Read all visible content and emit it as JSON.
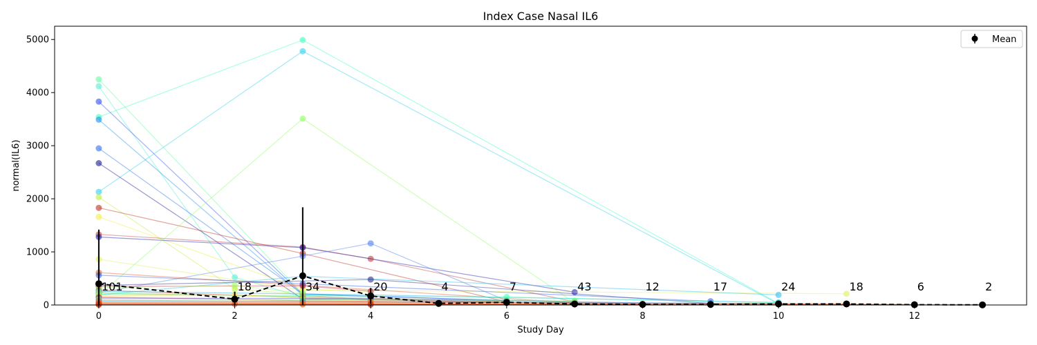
{
  "chart_data": {
    "type": "line",
    "title": "Index Case Nasal IL6",
    "xlabel": "Study Day",
    "ylabel": "normal(IL6)",
    "xlim": [
      -0.65,
      13.65
    ],
    "ylim": [
      0,
      5250
    ],
    "x_ticks": [
      0,
      2,
      4,
      6,
      8,
      10,
      12
    ],
    "y_ticks": [
      0,
      1000,
      2000,
      3000,
      4000,
      5000
    ],
    "grid": false,
    "legend": {
      "placement": "top-right",
      "entries": [
        "Mean"
      ]
    },
    "mean_series": {
      "name": "Mean",
      "color": "#000000",
      "points": [
        {
          "x": 0,
          "y": 400,
          "err": 1020
        },
        {
          "x": 2,
          "y": 110,
          "err": 140
        },
        {
          "x": 3,
          "y": 550,
          "err": 1290
        },
        {
          "x": 4,
          "y": 170,
          "err": 150
        },
        {
          "x": 5,
          "y": 30,
          "err": 0
        },
        {
          "x": 6,
          "y": 50,
          "err": 30
        },
        {
          "x": 7,
          "y": 20,
          "err": 20
        },
        {
          "x": 8,
          "y": 10,
          "err": 5
        },
        {
          "x": 9,
          "y": 10,
          "err": 10
        },
        {
          "x": 10,
          "y": 20,
          "err": 20
        },
        {
          "x": 11,
          "y": 20,
          "err": 20
        },
        {
          "x": 12,
          "y": 5,
          "err": 5
        },
        {
          "x": 13,
          "y": 2,
          "err": 2
        }
      ]
    },
    "counts": [
      {
        "x": 0,
        "label": "101"
      },
      {
        "x": 2,
        "label": "18"
      },
      {
        "x": 3,
        "label": "34"
      },
      {
        "x": 4,
        "label": "20"
      },
      {
        "x": 5,
        "label": "4"
      },
      {
        "x": 6,
        "label": "7"
      },
      {
        "x": 7,
        "label": "43"
      },
      {
        "x": 8,
        "label": "12"
      },
      {
        "x": 9,
        "label": "17"
      },
      {
        "x": 10,
        "label": "24"
      },
      {
        "x": 11,
        "label": "18"
      },
      {
        "x": 12,
        "label": "6"
      },
      {
        "x": 13,
        "label": "2"
      }
    ],
    "subject_series": [
      {
        "color": "#40ffc0",
        "points": [
          [
            0,
            3540
          ],
          [
            3,
            4990
          ],
          [
            10,
            30
          ]
        ]
      },
      {
        "color": "#30d0f0",
        "points": [
          [
            0,
            2130
          ],
          [
            3,
            4780
          ],
          [
            10,
            20
          ]
        ]
      },
      {
        "color": "#60ffa0",
        "points": [
          [
            0,
            4250
          ],
          [
            3,
            210
          ],
          [
            4,
            150
          ]
        ]
      },
      {
        "color": "#50f0d0",
        "points": [
          [
            0,
            4120
          ],
          [
            2,
            520
          ],
          [
            3,
            150
          ]
        ]
      },
      {
        "color": "#3050f0",
        "points": [
          [
            0,
            3830
          ],
          [
            3,
            200
          ],
          [
            7,
            50
          ]
        ]
      },
      {
        "color": "#2090f0",
        "points": [
          [
            0,
            3490
          ],
          [
            3,
            180
          ],
          [
            4,
            100
          ]
        ]
      },
      {
        "color": "#3070f0",
        "points": [
          [
            0,
            2950
          ],
          [
            3,
            210
          ],
          [
            6,
            80
          ]
        ]
      },
      {
        "color": "#1a1a90",
        "points": [
          [
            0,
            2670
          ],
          [
            3,
            110
          ],
          [
            6,
            60
          ]
        ]
      },
      {
        "color": "#c0f040",
        "points": [
          [
            0,
            2030
          ],
          [
            2,
            300
          ],
          [
            3,
            200
          ]
        ]
      },
      {
        "color": "#c03020",
        "points": [
          [
            0,
            1830
          ],
          [
            3,
            970
          ],
          [
            6,
            60
          ]
        ]
      },
      {
        "color": "#f0f040",
        "points": [
          [
            0,
            1660
          ],
          [
            3,
            300
          ],
          [
            4,
            250
          ]
        ]
      },
      {
        "color": "#c04040",
        "points": [
          [
            0,
            1330
          ],
          [
            3,
            1090
          ],
          [
            4,
            870
          ],
          [
            7,
            60
          ]
        ]
      },
      {
        "color": "#2020b0",
        "points": [
          [
            0,
            1280
          ],
          [
            3,
            1080
          ],
          [
            7,
            240
          ]
        ]
      },
      {
        "color": "#90ff60",
        "points": [
          [
            0,
            180
          ],
          [
            3,
            3510
          ],
          [
            7,
            40
          ]
        ]
      },
      {
        "color": "#5080f0",
        "points": [
          [
            0,
            230
          ],
          [
            3,
            920
          ],
          [
            4,
            1160
          ],
          [
            6,
            80
          ]
        ]
      },
      {
        "color": "#e0f060",
        "points": [
          [
            0,
            860
          ],
          [
            3,
            280
          ],
          [
            11,
            210
          ]
        ]
      },
      {
        "color": "#30c0f0",
        "points": [
          [
            0,
            190
          ],
          [
            3,
            540
          ],
          [
            10,
            190
          ]
        ]
      },
      {
        "color": "#e06030",
        "points": [
          [
            0,
            610
          ],
          [
            3,
            370
          ],
          [
            7,
            40
          ]
        ]
      },
      {
        "color": "#3060f0",
        "points": [
          [
            0,
            560
          ],
          [
            3,
            400
          ],
          [
            9,
            70
          ]
        ]
      },
      {
        "color": "#303090",
        "points": [
          [
            0,
            370
          ],
          [
            4,
            480
          ],
          [
            9,
            30
          ]
        ]
      },
      {
        "color": "#c03060",
        "points": [
          [
            0,
            350
          ],
          [
            3,
            360
          ],
          [
            4,
            260
          ]
        ]
      },
      {
        "color": "#a0ff60",
        "points": [
          [
            0,
            320
          ],
          [
            2,
            370
          ],
          [
            3,
            220
          ]
        ]
      },
      {
        "color": "#e05020",
        "points": [
          [
            0,
            280
          ],
          [
            3,
            140
          ],
          [
            6,
            40
          ]
        ]
      },
      {
        "color": "#20b0f0",
        "points": [
          [
            0,
            260
          ],
          [
            4,
            190
          ],
          [
            10,
            50
          ]
        ]
      },
      {
        "color": "#60ff90",
        "points": [
          [
            0,
            240
          ],
          [
            4,
            110
          ],
          [
            7,
            80
          ]
        ]
      },
      {
        "color": "#f0a030",
        "points": [
          [
            0,
            220
          ],
          [
            3,
            160
          ],
          [
            6,
            60
          ]
        ]
      },
      {
        "color": "#40ffb0",
        "points": [
          [
            0,
            200
          ],
          [
            6,
            150
          ],
          [
            10,
            40
          ]
        ]
      },
      {
        "color": "#ffe040",
        "points": [
          [
            0,
            170
          ],
          [
            2,
            190
          ],
          [
            4,
            80
          ]
        ]
      },
      {
        "color": "#e04020",
        "points": [
          [
            0,
            150
          ],
          [
            3,
            80
          ],
          [
            8,
            20
          ]
        ]
      },
      {
        "color": "#4040d0",
        "points": [
          [
            0,
            130
          ],
          [
            4,
            120
          ],
          [
            9,
            20
          ]
        ]
      },
      {
        "color": "#80ff70",
        "points": [
          [
            0,
            110
          ],
          [
            3,
            100
          ],
          [
            7,
            70
          ]
        ]
      },
      {
        "color": "#f07020",
        "points": [
          [
            0,
            90
          ],
          [
            4,
            60
          ],
          [
            11,
            20
          ]
        ]
      },
      {
        "color": "#20a0f0",
        "points": [
          [
            0,
            70
          ],
          [
            3,
            60
          ],
          [
            10,
            30
          ]
        ]
      },
      {
        "color": "#e06020",
        "points": [
          [
            0,
            50
          ],
          [
            6,
            40
          ],
          [
            12,
            10
          ]
        ]
      },
      {
        "color": "#ff8020",
        "points": [
          [
            0,
            40
          ],
          [
            3,
            30
          ],
          [
            8,
            10
          ]
        ]
      },
      {
        "color": "#ff4010",
        "points": [
          [
            0,
            30
          ],
          [
            4,
            20
          ],
          [
            13,
            5
          ]
        ]
      },
      {
        "color": "#d04010",
        "points": [
          [
            0,
            20
          ],
          [
            2,
            20
          ],
          [
            7,
            10
          ]
        ]
      },
      {
        "color": "#f06010",
        "points": [
          [
            0,
            10
          ],
          [
            3,
            10
          ],
          [
            9,
            5
          ]
        ]
      },
      {
        "color": "#c03010",
        "points": [
          [
            0,
            5
          ],
          [
            4,
            5
          ],
          [
            12,
            5
          ]
        ]
      }
    ]
  }
}
